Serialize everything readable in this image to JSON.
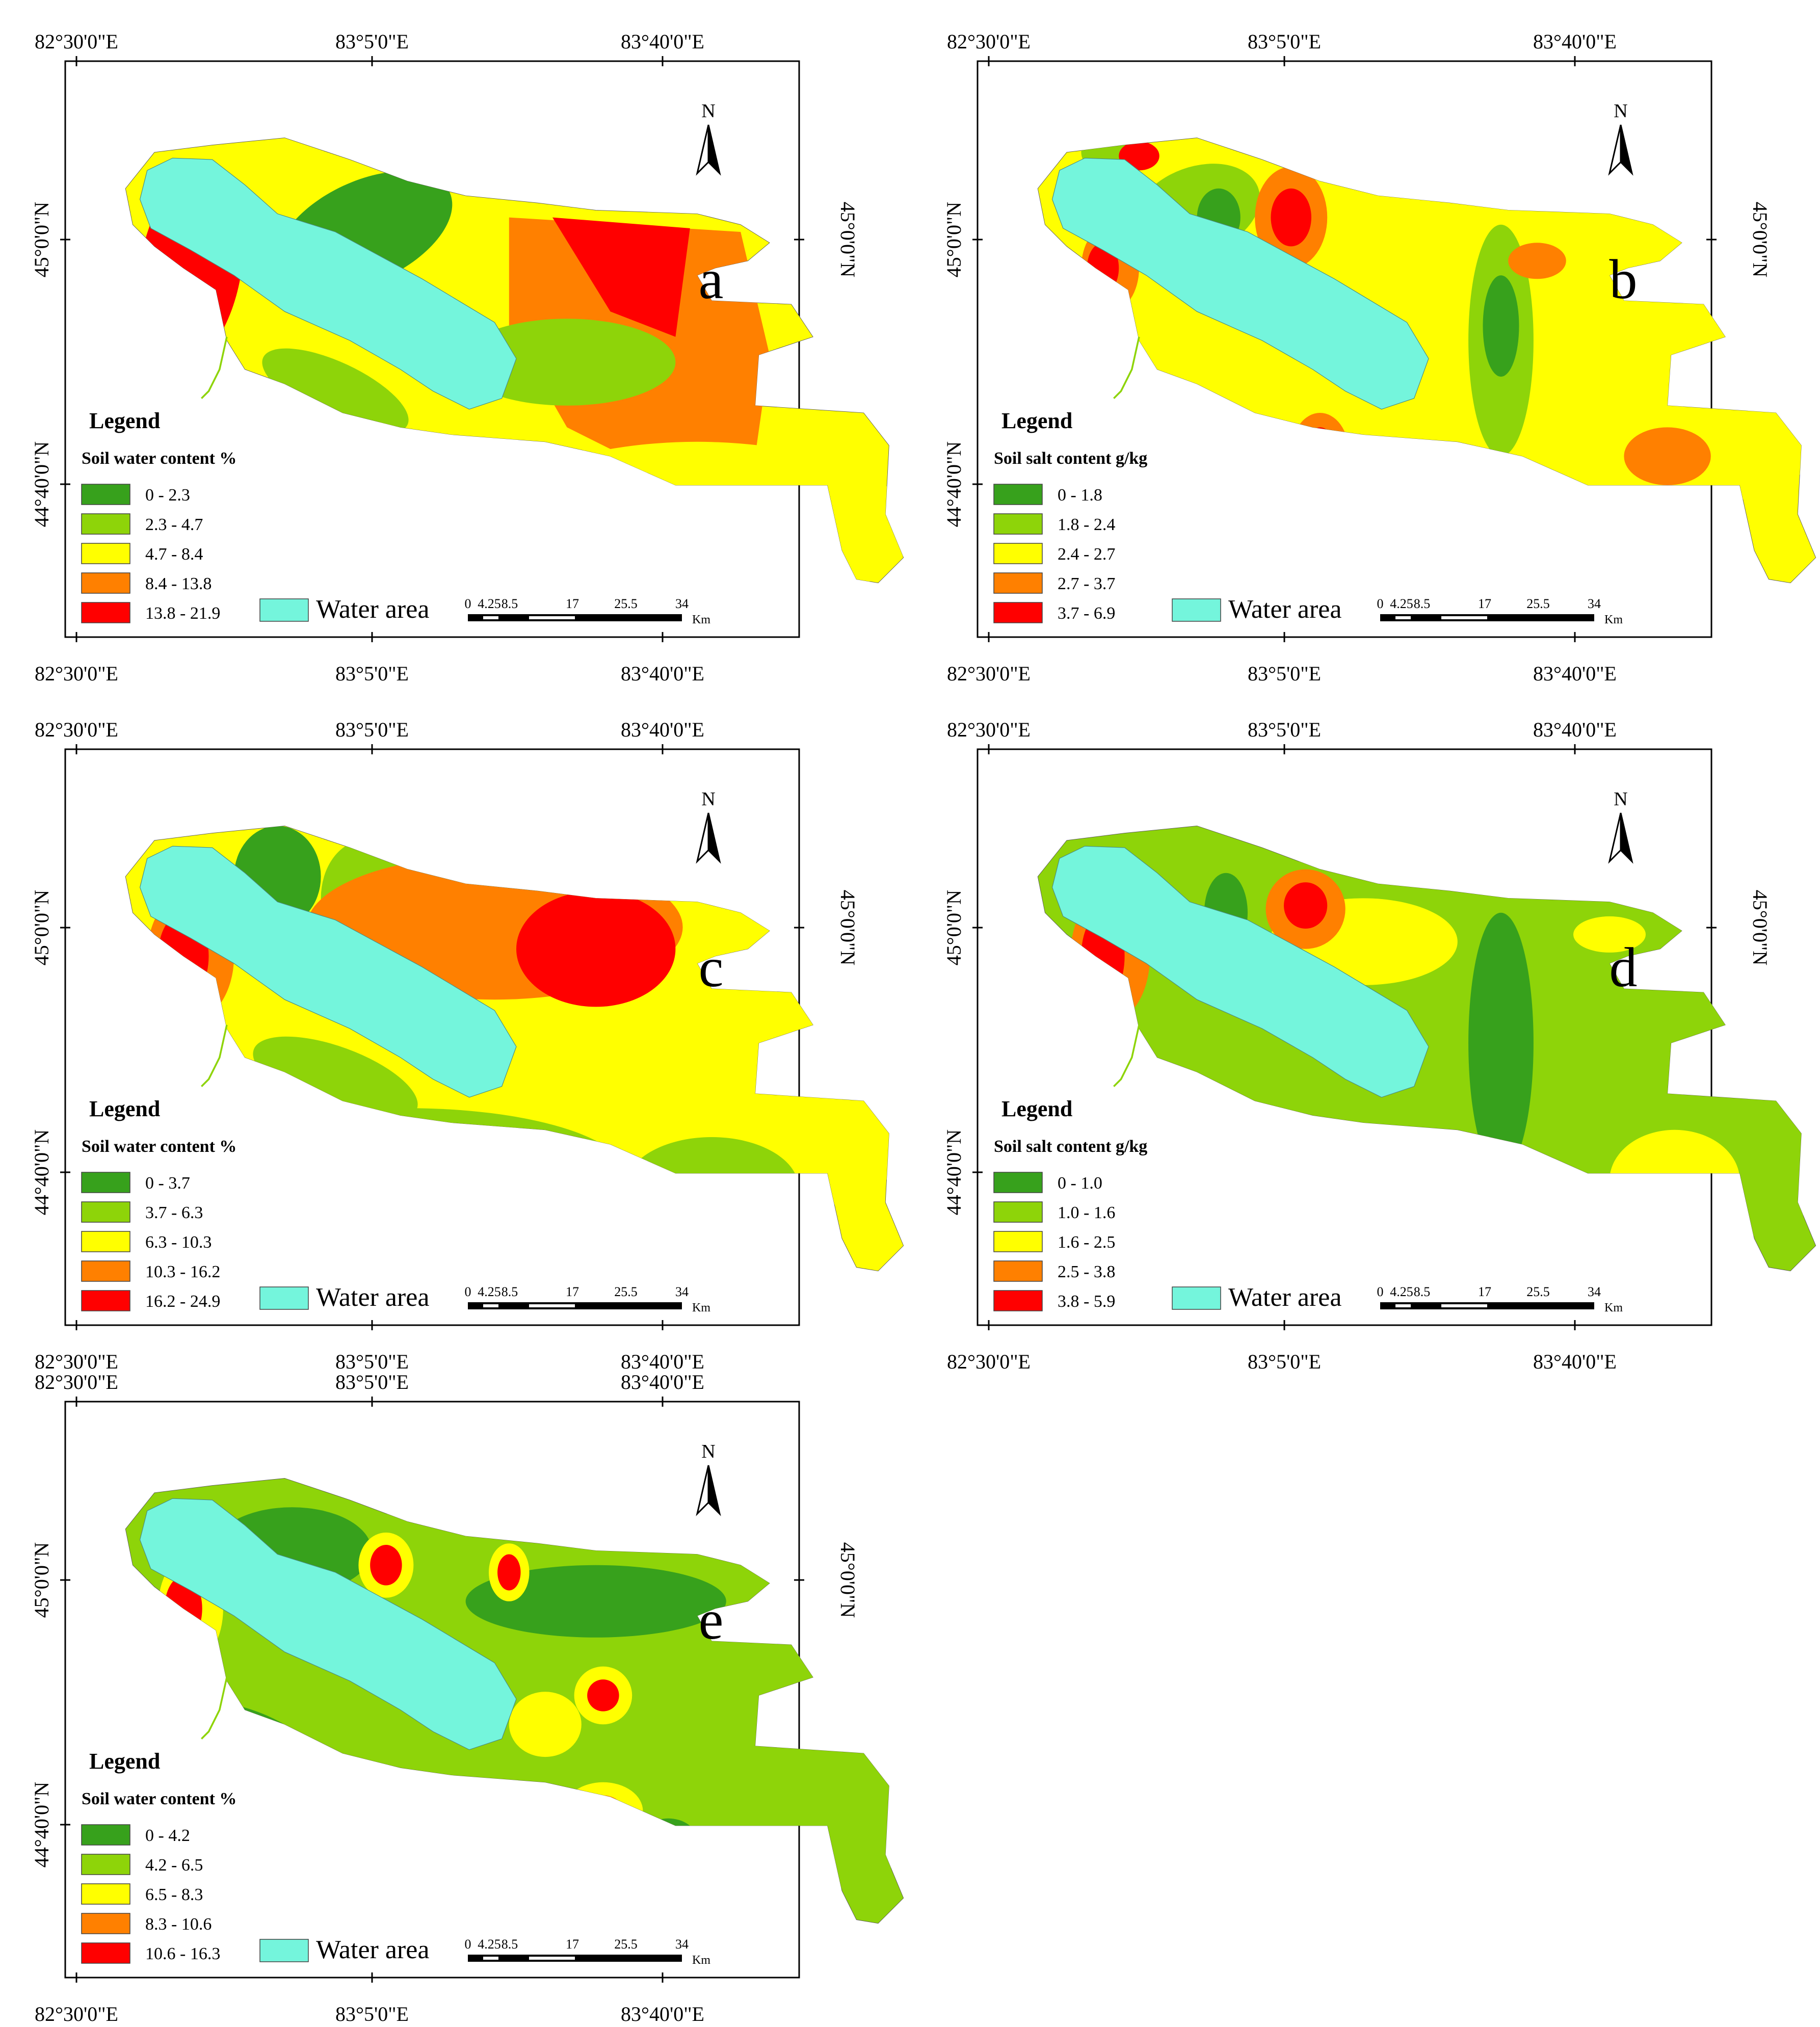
{
  "colors": {
    "water": "#74f5dc",
    "classes": [
      "#37a11c",
      "#8ed409",
      "#ffff00",
      "#ff8000",
      "#ff0000"
    ],
    "frame": "#000000"
  },
  "shared": {
    "north_label": "N",
    "legend_heading": "Legend",
    "water_label": "Water area",
    "scale_ticks": [
      "0",
      "4.25",
      "8.5",
      "17",
      "25.5",
      "34"
    ],
    "scale_unit": "Km",
    "lon_labels": [
      "82°30'0\"E",
      "83°5'0\"E",
      "83°40'0\"E"
    ],
    "lat_labels": [
      "45°0'0\"N",
      "44°40'0\"N"
    ]
  },
  "panels": [
    {
      "letter": "a",
      "legend_title": "Soil water content %",
      "classes": [
        "0 - 2.3",
        "2.3 - 4.7",
        "4.7 - 8.4",
        "8.4 - 13.8",
        "13.8 - 21.9"
      ]
    },
    {
      "letter": "b",
      "legend_title": "Soil salt content g/kg",
      "classes": [
        "0 - 1.8",
        "1.8 - 2.4",
        "2.4 - 2.7",
        "2.7 - 3.7",
        "3.7 - 6.9"
      ]
    },
    {
      "letter": "c",
      "legend_title": "Soil water content %",
      "classes": [
        "0 - 3.7",
        "3.7 - 6.3",
        "6.3 - 10.3",
        "10.3 - 16.2",
        "16.2 - 24.9"
      ]
    },
    {
      "letter": "d",
      "legend_title": "Soil salt content g/kg",
      "classes": [
        "0 - 1.0",
        "1.0 - 1.6",
        "1.6 - 2.5",
        "2.5 - 3.8",
        "3.8 - 5.9"
      ]
    },
    {
      "letter": "e",
      "legend_title": "Soil water content %",
      "classes": [
        "0 - 4.2",
        "4.2 - 6.5",
        "6.5 - 8.3",
        "8.3 - 10.6",
        "10.6 - 16.3"
      ]
    }
  ]
}
